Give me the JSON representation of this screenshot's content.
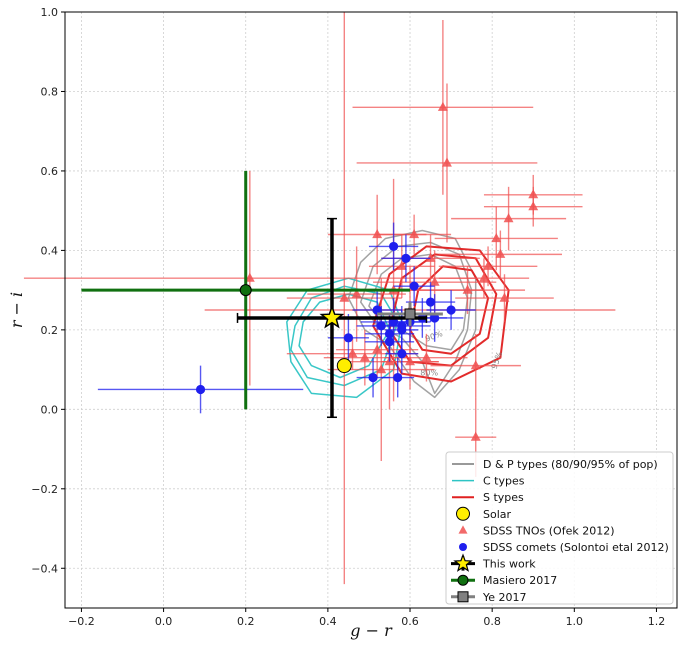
{
  "chart_data": {
    "type": "scatter",
    "xlabel": "g − r",
    "ylabel": "r − i",
    "xlim": [
      -0.24,
      1.25
    ],
    "ylim": [
      -0.5,
      1.0
    ],
    "xticks": [
      -0.2,
      0.0,
      0.2,
      0.4,
      0.6,
      0.8,
      1.0,
      1.2
    ],
    "yticks": [
      -0.4,
      -0.2,
      0.0,
      0.2,
      0.4,
      0.6,
      0.8,
      1.0
    ],
    "tick_labels_x": [
      "−0.2",
      "0.0",
      "0.2",
      "0.4",
      "0.6",
      "0.8",
      "1.0",
      "1.2"
    ],
    "tick_labels_y": [
      "−0.4",
      "−0.2",
      "0.0",
      "0.2",
      "0.4",
      "0.6",
      "0.8",
      "1.0"
    ],
    "grid": true,
    "legend_position": "bottom-right",
    "colors": {
      "dp": "#999999",
      "c": "#2ec4c4",
      "s": "#e02020",
      "solar": "#ffee00",
      "tno": "#f05050",
      "comet": "#1f1fee",
      "thiswork": "#000000",
      "masiero": "#107010",
      "ye": "#808080"
    },
    "contour_labels": [
      "90%",
      "95%",
      "80%"
    ],
    "series": [
      {
        "name": "D & P types (80/90/95% of pop)",
        "type": "contour",
        "contours": [
          {
            "level": "80%",
            "points": [
              [
                0.5,
                0.26
              ],
              [
                0.53,
                0.34
              ],
              [
                0.58,
                0.38
              ],
              [
                0.65,
                0.39
              ],
              [
                0.71,
                0.36
              ],
              [
                0.74,
                0.28
              ],
              [
                0.73,
                0.2
              ],
              [
                0.7,
                0.15
              ],
              [
                0.64,
                0.16
              ],
              [
                0.58,
                0.2
              ],
              [
                0.53,
                0.22
              ]
            ]
          },
          {
            "level": "90%",
            "points": [
              [
                0.48,
                0.27
              ],
              [
                0.51,
                0.36
              ],
              [
                0.57,
                0.41
              ],
              [
                0.65,
                0.42
              ],
              [
                0.72,
                0.39
              ],
              [
                0.75,
                0.3
              ],
              [
                0.74,
                0.2
              ],
              [
                0.71,
                0.12
              ],
              [
                0.66,
                0.04
              ],
              [
                0.63,
                0.12
              ],
              [
                0.58,
                0.18
              ],
              [
                0.52,
                0.21
              ]
            ]
          },
          {
            "level": "95%",
            "points": [
              [
                0.45,
                0.28
              ],
              [
                0.48,
                0.37
              ],
              [
                0.54,
                0.43
              ],
              [
                0.63,
                0.45
              ],
              [
                0.71,
                0.43
              ],
              [
                0.76,
                0.33
              ],
              [
                0.76,
                0.2
              ],
              [
                0.72,
                0.1
              ],
              [
                0.66,
                0.03
              ],
              [
                0.61,
                0.07
              ],
              [
                0.55,
                0.16
              ],
              [
                0.49,
                0.2
              ]
            ]
          }
        ]
      },
      {
        "name": "C types",
        "type": "contour",
        "contours": [
          {
            "level": "80%",
            "points": [
              [
                0.34,
                0.22
              ],
              [
                0.38,
                0.27
              ],
              [
                0.45,
                0.29
              ],
              [
                0.52,
                0.27
              ],
              [
                0.55,
                0.2
              ],
              [
                0.5,
                0.11
              ],
              [
                0.43,
                0.08
              ],
              [
                0.36,
                0.11
              ],
              [
                0.33,
                0.16
              ]
            ]
          },
          {
            "level": "90%",
            "points": [
              [
                0.32,
                0.21
              ],
              [
                0.36,
                0.28
              ],
              [
                0.44,
                0.31
              ],
              [
                0.53,
                0.29
              ],
              [
                0.57,
                0.22
              ],
              [
                0.53,
                0.1
              ],
              [
                0.44,
                0.06
              ],
              [
                0.35,
                0.08
              ],
              [
                0.31,
                0.15
              ]
            ]
          },
          {
            "level": "95%",
            "points": [
              [
                0.3,
                0.22
              ],
              [
                0.35,
                0.3
              ],
              [
                0.45,
                0.33
              ],
              [
                0.55,
                0.3
              ],
              [
                0.58,
                0.22
              ],
              [
                0.56,
                0.1
              ],
              [
                0.47,
                0.03
              ],
              [
                0.36,
                0.04
              ],
              [
                0.31,
                0.12
              ]
            ]
          }
        ]
      },
      {
        "name": "S types",
        "type": "contour",
        "contours": [
          {
            "level": "80%",
            "points": [
              [
                0.6,
                0.2
              ],
              [
                0.62,
                0.3
              ],
              [
                0.68,
                0.36
              ],
              [
                0.75,
                0.35
              ],
              [
                0.79,
                0.28
              ],
              [
                0.77,
                0.19
              ],
              [
                0.7,
                0.14
              ],
              [
                0.63,
                0.15
              ]
            ]
          },
          {
            "level": "90%",
            "points": [
              [
                0.55,
                0.2
              ],
              [
                0.58,
                0.33
              ],
              [
                0.66,
                0.39
              ],
              [
                0.76,
                0.38
              ],
              [
                0.81,
                0.29
              ],
              [
                0.79,
                0.18
              ],
              [
                0.7,
                0.11
              ],
              [
                0.6,
                0.12
              ]
            ]
          },
          {
            "level": "95%",
            "points": [
              [
                0.51,
                0.21
              ],
              [
                0.55,
                0.34
              ],
              [
                0.64,
                0.41
              ],
              [
                0.77,
                0.4
              ],
              [
                0.84,
                0.3
              ],
              [
                0.82,
                0.13
              ],
              [
                0.7,
                0.07
              ],
              [
                0.58,
                0.09
              ]
            ]
          }
        ]
      },
      {
        "name": "Solar",
        "type": "point",
        "x": 0.44,
        "y": 0.11
      },
      {
        "name": "SDSS TNOs (Ofek 2012)",
        "type": "errorbar",
        "marker": "triangle",
        "points": [
          {
            "x": 0.68,
            "y": 0.76,
            "xerr": 0.22,
            "yerr": 0.22
          },
          {
            "x": 0.9,
            "y": 0.54,
            "xerr": 0.12,
            "yerr": 0.05
          },
          {
            "x": 0.9,
            "y": 0.51,
            "xerr": 0.12,
            "yerr": 0.05
          },
          {
            "x": 0.84,
            "y": 0.48,
            "xerr": 0.14,
            "yerr": 0.08
          },
          {
            "x": 0.81,
            "y": 0.43,
            "xerr": 0.15,
            "yerr": 0.08
          },
          {
            "x": 0.82,
            "y": 0.39,
            "xerr": 0.15,
            "yerr": 0.06
          },
          {
            "x": 0.79,
            "y": 0.36,
            "xerr": 0.12,
            "yerr": 0.05
          },
          {
            "x": 0.78,
            "y": 0.33,
            "xerr": 0.11,
            "yerr": 0.05
          },
          {
            "x": 0.83,
            "y": 0.28,
            "xerr": 0.12,
            "yerr": 0.06
          },
          {
            "x": 0.74,
            "y": 0.3,
            "xerr": 0.14,
            "yerr": 0.06
          },
          {
            "x": 0.69,
            "y": 0.62,
            "xerr": 0.22,
            "yerr": 0.2
          },
          {
            "x": 0.65,
            "y": 0.38,
            "xerr": 0.12,
            "yerr": 0.06
          },
          {
            "x": 0.61,
            "y": 0.44,
            "xerr": 0.09,
            "yerr": 0.05
          },
          {
            "x": 0.58,
            "y": 0.36,
            "xerr": 0.08,
            "yerr": 0.08
          },
          {
            "x": 0.56,
            "y": 0.3,
            "xerr": 0.22,
            "yerr": 0.28
          },
          {
            "x": 0.52,
            "y": 0.44,
            "xerr": 0.12,
            "yerr": 0.1
          },
          {
            "x": 0.47,
            "y": 0.29,
            "xerr": 0.12,
            "yerr": 0.12
          },
          {
            "x": 0.44,
            "y": 0.28,
            "xerr": 0.14,
            "yerr": 0.72
          },
          {
            "x": 0.52,
            "y": 0.15,
            "xerr": 0.1,
            "yerr": 0.07
          },
          {
            "x": 0.49,
            "y": 0.13,
            "xerr": 0.1,
            "yerr": 0.07
          },
          {
            "x": 0.46,
            "y": 0.14,
            "xerr": 0.16,
            "yerr": 0.04
          },
          {
            "x": 0.55,
            "y": 0.12,
            "xerr": 0.12,
            "yerr": 0.12
          },
          {
            "x": 0.6,
            "y": 0.12,
            "xerr": 0.07,
            "yerr": 0.07
          },
          {
            "x": 0.64,
            "y": 0.13,
            "xerr": 0.1,
            "yerr": 0.06
          },
          {
            "x": 0.76,
            "y": 0.11,
            "xerr": 0.11,
            "yerr": 0.08
          },
          {
            "x": 0.76,
            "y": -0.07,
            "xerr": 0.05,
            "yerr": 0.1
          },
          {
            "x": 0.53,
            "y": 0.1,
            "xerr": 0.13,
            "yerr": 0.23
          },
          {
            "x": 0.21,
            "y": 0.33,
            "xerr": 0.55,
            "yerr": 0.27
          },
          {
            "x": 0.6,
            "y": 0.25,
            "xerr": 0.5,
            "yerr": 0.11
          },
          {
            "x": 0.66,
            "y": 0.32,
            "xerr": 0.15,
            "yerr": 0.08
          }
        ]
      },
      {
        "name": "SDSS comets (Solontoi etal 2012)",
        "type": "errorbar",
        "marker": "circle",
        "points": [
          {
            "x": 0.09,
            "y": 0.05,
            "xerr": 0.25,
            "yerr": 0.06
          },
          {
            "x": 0.56,
            "y": 0.41,
            "xerr": 0.06,
            "yerr": 0.06
          },
          {
            "x": 0.59,
            "y": 0.38,
            "xerr": 0.06,
            "yerr": 0.06
          },
          {
            "x": 0.61,
            "y": 0.31,
            "xerr": 0.05,
            "yerr": 0.05
          },
          {
            "x": 0.65,
            "y": 0.27,
            "xerr": 0.06,
            "yerr": 0.05
          },
          {
            "x": 0.7,
            "y": 0.25,
            "xerr": 0.06,
            "yerr": 0.05
          },
          {
            "x": 0.66,
            "y": 0.23,
            "xerr": 0.07,
            "yerr": 0.06
          },
          {
            "x": 0.63,
            "y": 0.23,
            "xerr": 0.06,
            "yerr": 0.05
          },
          {
            "x": 0.6,
            "y": 0.22,
            "xerr": 0.05,
            "yerr": 0.05
          },
          {
            "x": 0.58,
            "y": 0.21,
            "xerr": 0.07,
            "yerr": 0.05
          },
          {
            "x": 0.56,
            "y": 0.22,
            "xerr": 0.08,
            "yerr": 0.06
          },
          {
            "x": 0.55,
            "y": 0.19,
            "xerr": 0.06,
            "yerr": 0.05
          },
          {
            "x": 0.53,
            "y": 0.21,
            "xerr": 0.06,
            "yerr": 0.05
          },
          {
            "x": 0.58,
            "y": 0.2,
            "xerr": 0.04,
            "yerr": 0.05
          },
          {
            "x": 0.55,
            "y": 0.17,
            "xerr": 0.06,
            "yerr": 0.05
          },
          {
            "x": 0.52,
            "y": 0.25,
            "xerr": 0.06,
            "yerr": 0.05
          },
          {
            "x": 0.45,
            "y": 0.18,
            "xerr": 0.05,
            "yerr": 0.06
          },
          {
            "x": 0.58,
            "y": 0.14,
            "xerr": 0.04,
            "yerr": 0.05
          },
          {
            "x": 0.51,
            "y": 0.08,
            "xerr": 0.04,
            "yerr": 0.05
          },
          {
            "x": 0.57,
            "y": 0.08,
            "xerr": 0.04,
            "yerr": 0.05
          }
        ]
      },
      {
        "name": "This work",
        "type": "errorbar",
        "marker": "star",
        "points": [
          {
            "x": 0.41,
            "y": 0.23,
            "xerr": 0.23,
            "yerr": 0.25
          }
        ]
      },
      {
        "name": "Masiero 2017",
        "type": "errorbar",
        "marker": "circle",
        "points": [
          {
            "x": 0.2,
            "y": 0.3,
            "xerr": 0.4,
            "yerr": 0.3
          }
        ]
      },
      {
        "name": "Ye 2017",
        "type": "errorbar",
        "marker": "square",
        "points": [
          {
            "x": 0.6,
            "y": 0.24,
            "xerr": 0.08,
            "yerr": 0.03
          }
        ]
      }
    ]
  }
}
